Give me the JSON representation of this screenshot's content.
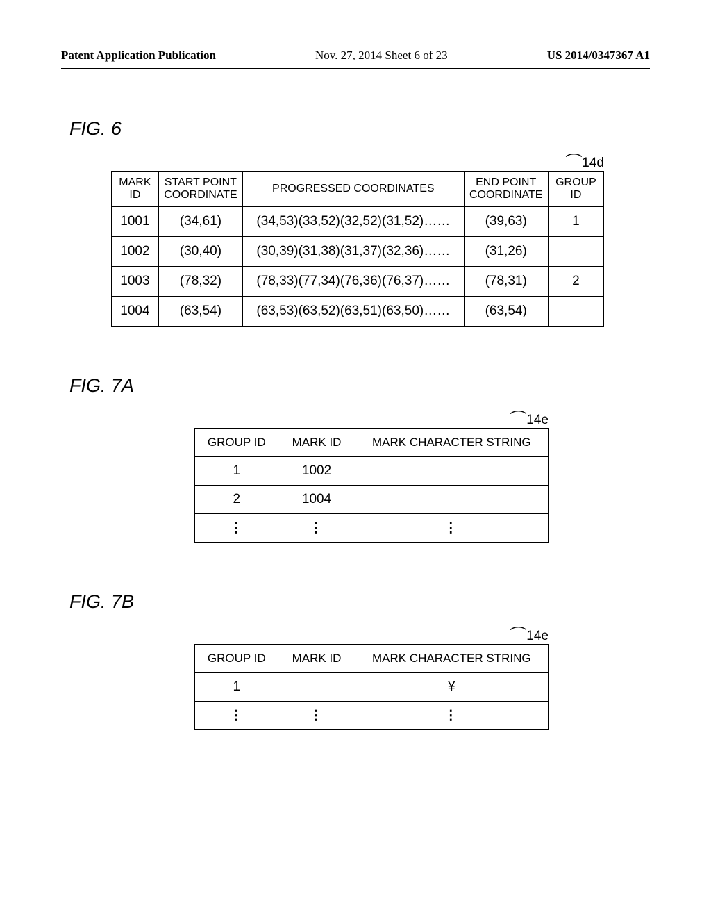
{
  "header": {
    "left": "Patent Application Publication",
    "center": "Nov. 27, 2014  Sheet 6 of 23",
    "right": "US 2014/0347367 A1"
  },
  "figures": {
    "fig6": {
      "label": "FIG. 6",
      "ref": "14d",
      "columns": {
        "mark_id": "MARK ID",
        "start_point": "START POINT COORDINATE",
        "progressed": "PROGRESSED COORDINATES",
        "end_point": "END POINT COORDINATE",
        "group_id": "GROUP ID"
      },
      "col_widths": {
        "mark_id": "66px",
        "start_point": "118px",
        "progressed": "310px",
        "end_point": "118px",
        "group_id": "78px"
      },
      "rows": [
        {
          "mark_id": "1001",
          "start_point": "(34,61)",
          "progressed": "(34,53)(33,52)(32,52)(31,52)……",
          "end_point": "(39,63)",
          "group_id": "1"
        },
        {
          "mark_id": "1002",
          "start_point": "(30,40)",
          "progressed": "(30,39)(31,38)(31,37)(32,36)……",
          "end_point": "(31,26)",
          "group_id": ""
        },
        {
          "mark_id": "1003",
          "start_point": "(78,32)",
          "progressed": "(78,33)(77,34)(76,36)(76,37)……",
          "end_point": "(78,31)",
          "group_id": "2"
        },
        {
          "mark_id": "1004",
          "start_point": "(63,54)",
          "progressed": "(63,53)(63,52)(63,51)(63,50)……",
          "end_point": "(63,54)",
          "group_id": ""
        }
      ]
    },
    "fig7a": {
      "label": "FIG. 7A",
      "ref": "14e",
      "columns": {
        "group_id": "GROUP ID",
        "mark_id": "MARK ID",
        "mark_str": "MARK CHARACTER STRING"
      },
      "col_widths": {
        "group_id": "116px",
        "mark_id": "106px",
        "mark_str": "268px"
      },
      "rows": [
        {
          "group_id": "1",
          "mark_id": "1002",
          "mark_str": ""
        },
        {
          "group_id": "2",
          "mark_id": "1004",
          "mark_str": ""
        },
        {
          "group_id": "⋮",
          "mark_id": "⋮",
          "mark_str": "⋮",
          "vdots": true
        }
      ]
    },
    "fig7b": {
      "label": "FIG. 7B",
      "ref": "14e",
      "columns": {
        "group_id": "GROUP ID",
        "mark_id": "MARK ID",
        "mark_str": "MARK CHARACTER STRING"
      },
      "col_widths": {
        "group_id": "116px",
        "mark_id": "106px",
        "mark_str": "268px"
      },
      "rows": [
        {
          "group_id": "1",
          "mark_id": "",
          "mark_str": "¥"
        },
        {
          "group_id": "⋮",
          "mark_id": "⋮",
          "mark_str": "⋮",
          "vdots": true
        }
      ]
    }
  }
}
